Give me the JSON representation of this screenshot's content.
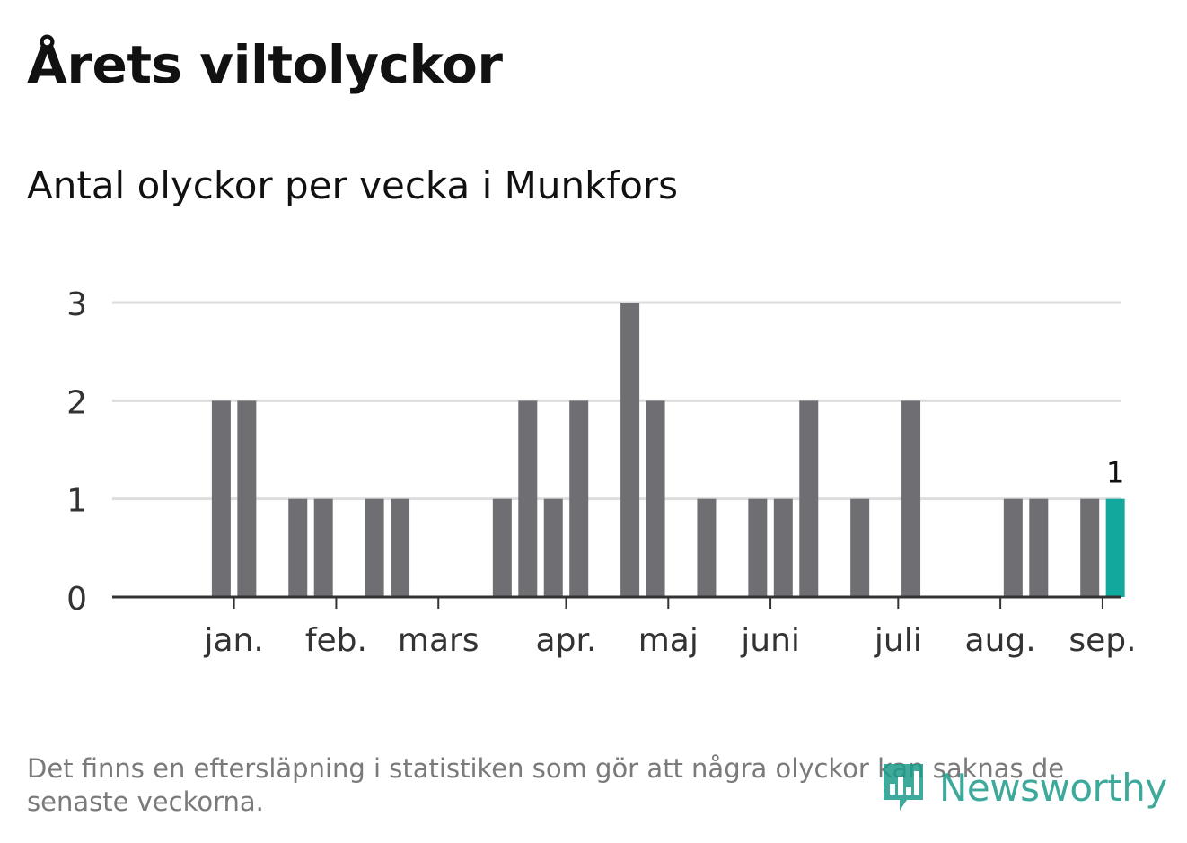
{
  "header": {
    "title": "Årets viltolyckor",
    "subtitle": "Antal olyckor per vecka i Munkfors"
  },
  "footnote": "Det finns en eftersläpning i statistiken som gör att några olyckor kan saknas de senaste veckorna.",
  "logo": {
    "text": "Newsworthy"
  },
  "colors": {
    "bar": "#6f6e73",
    "highlight": "#13a89e",
    "grid": "#dddddd",
    "axis": "#333333",
    "logo": "#1b9b8a"
  },
  "chart_data": {
    "type": "bar",
    "x_unit": "week",
    "x": [
      1,
      2,
      3,
      4,
      5,
      6,
      7,
      8,
      9,
      10,
      11,
      12,
      13,
      14,
      15,
      16,
      17,
      18,
      19,
      20,
      21,
      22,
      23,
      24,
      25,
      26,
      27,
      28,
      29,
      30,
      31,
      32,
      33,
      34,
      35,
      36,
      37,
      38
    ],
    "values": [
      0,
      0,
      2,
      2,
      0,
      1,
      1,
      0,
      1,
      1,
      0,
      0,
      0,
      1,
      2,
      1,
      2,
      0,
      3,
      2,
      0,
      1,
      0,
      1,
      1,
      2,
      0,
      1,
      0,
      2,
      0,
      0,
      0,
      1,
      1,
      0,
      1,
      1
    ],
    "highlight_index": 37,
    "highlight_label": "1",
    "ylim": [
      0,
      3
    ],
    "yticks": [
      0,
      1,
      2,
      3
    ],
    "grid": true,
    "month_ticks": [
      {
        "label": "jan.",
        "week": 3.5
      },
      {
        "label": "feb.",
        "week": 7.5
      },
      {
        "label": "mars",
        "week": 11.5
      },
      {
        "label": "apr.",
        "week": 16.5
      },
      {
        "label": "maj",
        "week": 20.5
      },
      {
        "label": "juni",
        "week": 24.5
      },
      {
        "label": "juli",
        "week": 29.5
      },
      {
        "label": "aug.",
        "week": 33.5
      },
      {
        "label": "sep.",
        "week": 37.5
      }
    ]
  }
}
